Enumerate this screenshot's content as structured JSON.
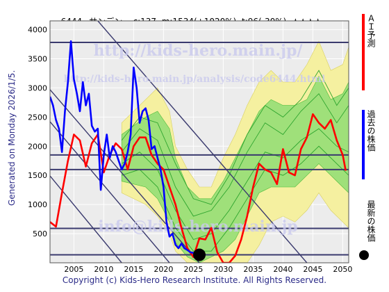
{
  "header": {
    "code_name": "6444=サンデン",
    "c": "c:137",
    "m": "m:1534(+1020%)",
    "t": "t:96(-30%)",
    "stars": "★★★★"
  },
  "side_text": "Generated on Monday 2026/1/5.",
  "footer": "Copyright (c) Kids-Hero Research Institute. All Rights Reserved.",
  "watermarks": {
    "url_main": "http://kids-hero.main.jp/",
    "url_analysis": "http://kids-hero.main.jp/analysis/code6444.html",
    "email": "info@kids-hero.main.jp"
  },
  "legend": {
    "ai": "ＡＩ予測",
    "past": "過去の株価",
    "latest": "最新の株価",
    "colors": {
      "ai": "#ff0000",
      "past": "#0000ff",
      "latest": "#000000"
    }
  },
  "chart_data": {
    "type": "line",
    "xlim": [
      2001,
      2051
    ],
    "ylim": [
      0,
      4150
    ],
    "xticks": [
      2005,
      2010,
      2015,
      2020,
      2025,
      2030,
      2035,
      2040,
      2045,
      2050
    ],
    "yticks": [
      500,
      1000,
      1500,
      2000,
      2500,
      3000,
      3500,
      4000
    ],
    "horizontal_levels": [
      3780,
      1850,
      1600,
      590,
      137
    ],
    "diagonal_lines": [
      {
        "x1": 2009,
        "y1": 4150,
        "x2": 2044,
        "y2": 0
      },
      {
        "x1": 2001,
        "y1": 2970,
        "x2": 2026,
        "y2": 0
      },
      {
        "x1": 2001,
        "y1": 2420,
        "x2": 2021,
        "y2": 0
      },
      {
        "x1": 2001,
        "y1": 1490,
        "x2": 2013,
        "y2": 0
      }
    ],
    "past_price": {
      "name": "過去の株価",
      "x": [
        2001,
        2001.5,
        2002,
        2002.5,
        2003,
        2003.5,
        2004,
        2004.5,
        2005,
        2005.5,
        2006,
        2006.5,
        2007,
        2007.5,
        2008,
        2008.5,
        2009,
        2009.5,
        2010,
        2010.5,
        2011,
        2011.5,
        2012,
        2012.5,
        2013,
        2013.5,
        2014,
        2014.5,
        2015,
        2015.5,
        2016,
        2016.5,
        2017,
        2017.5,
        2018,
        2018.5,
        2019,
        2019.5,
        2020,
        2020.5,
        2021,
        2021.5,
        2022,
        2022.5,
        2023,
        2023.5,
        2024,
        2024.5,
        2025,
        2025.5,
        2026
      ],
      "values": [
        2850,
        2700,
        2450,
        2300,
        1900,
        2600,
        3100,
        3800,
        3150,
        2900,
        2600,
        3100,
        2700,
        2900,
        2350,
        2250,
        2300,
        1250,
        1850,
        2200,
        1800,
        2000,
        1900,
        1750,
        1600,
        1700,
        1900,
        2200,
        3350,
        3000,
        2400,
        2600,
        2650,
        2450,
        1950,
        2000,
        1800,
        1600,
        1300,
        700,
        450,
        500,
        310,
        250,
        330,
        250,
        220,
        180,
        170,
        150,
        137
      ]
    },
    "latest_price": {
      "x": 2026,
      "y": 137
    },
    "ai_forecast": {
      "name": "ＡＩ予測",
      "x": [
        2001,
        2002,
        2003,
        2004,
        2005,
        2006,
        2007,
        2008,
        2009,
        2010,
        2011,
        2012,
        2013,
        2014,
        2015,
        2016,
        2017,
        2018,
        2019,
        2020,
        2021,
        2022,
        2023,
        2024,
        2025,
        2026,
        2027,
        2028,
        2029,
        2030,
        2031,
        2032,
        2033,
        2034,
        2035,
        2036,
        2037,
        2038,
        2039,
        2040,
        2041,
        2042,
        2043,
        2044,
        2045,
        2046,
        2047,
        2048,
        2049,
        2050,
        2050.5
      ],
      "values": [
        700,
        620,
        1200,
        1750,
        2200,
        2100,
        1650,
        2050,
        2200,
        1550,
        1850,
        2050,
        1950,
        1600,
        2000,
        2150,
        2150,
        1850,
        1700,
        1600,
        1300,
        1000,
        600,
        250,
        100,
        420,
        400,
        600,
        180,
        0,
        0,
        120,
        400,
        800,
        1300,
        1700,
        1600,
        1550,
        1350,
        1950,
        1550,
        1500,
        1950,
        2150,
        2550,
        2400,
        2300,
        2450,
        2100,
        1850,
        1580
      ]
    },
    "band_outer": {
      "x": [
        2013,
        2017,
        2019,
        2021,
        2022,
        2024,
        2026,
        2028,
        2030,
        2032,
        2034,
        2036,
        2038,
        2040,
        2042,
        2044,
        2046,
        2048,
        2050,
        2051
      ],
      "low": [
        1200,
        1000,
        800,
        500,
        200,
        0,
        0,
        0,
        0,
        0,
        0,
        300,
        700,
        800,
        700,
        900,
        1200,
        900,
        700,
        600
      ],
      "high": [
        2400,
        2800,
        3000,
        2600,
        2000,
        1600,
        1300,
        1300,
        1800,
        2200,
        2700,
        3100,
        3300,
        3100,
        3100,
        3400,
        3800,
        3300,
        3400,
        3700
      ]
    },
    "band_inner": {
      "x": [
        2013,
        2017,
        2019,
        2021,
        2022,
        2024,
        2026,
        2028,
        2030,
        2032,
        2034,
        2036,
        2038,
        2040,
        2042,
        2044,
        2046,
        2048,
        2050,
        2051
      ],
      "low": [
        1400,
        1300,
        1100,
        700,
        350,
        100,
        0,
        100,
        200,
        400,
        800,
        1200,
        1300,
        1300,
        1300,
        1500,
        1700,
        1500,
        1300,
        1200
      ],
      "high": [
        2200,
        2500,
        2600,
        2300,
        1800,
        1300,
        1100,
        1100,
        1400,
        1800,
        2200,
        2600,
        2800,
        2700,
        2700,
        2800,
        3200,
        2800,
        2900,
        3100
      ]
    },
    "green_paths": [
      {
        "x": [
          2013,
          2016,
          2019,
          2022,
          2025,
          2028,
          2031,
          2034,
          2037,
          2040,
          2043,
          2046,
          2049,
          2051
        ],
        "values": [
          1900,
          2300,
          2100,
          1300,
          800,
          900,
          1300,
          1900,
          2400,
          2200,
          2600,
          2900,
          2400,
          2700
        ]
      },
      {
        "x": [
          2013,
          2016,
          2019,
          2022,
          2025,
          2028,
          2031,
          2034,
          2037,
          2040,
          2043,
          2046,
          2049,
          2051
        ],
        "values": [
          1700,
          1900,
          1600,
          900,
          400,
          500,
          900,
          1400,
          1900,
          1800,
          2100,
          2300,
          2000,
          1900
        ]
      },
      {
        "x": [
          2013,
          2016,
          2019,
          2022,
          2025,
          2028,
          2031,
          2034,
          2037,
          2040,
          2043,
          2046,
          2049,
          2051
        ],
        "values": [
          2100,
          2500,
          2400,
          1700,
          1100,
          1000,
          1500,
          2200,
          2700,
          2500,
          2800,
          3300,
          2700,
          3000
        ]
      },
      {
        "x": [
          2013,
          2016,
          2019,
          2022,
          2025,
          2028,
          2031,
          2034,
          2037,
          2040,
          2043,
          2046,
          2049,
          2051
        ],
        "values": [
          1500,
          1600,
          1300,
          600,
          200,
          200,
          600,
          1100,
          1600,
          1500,
          1700,
          2000,
          1700,
          1500
        ]
      }
    ]
  }
}
